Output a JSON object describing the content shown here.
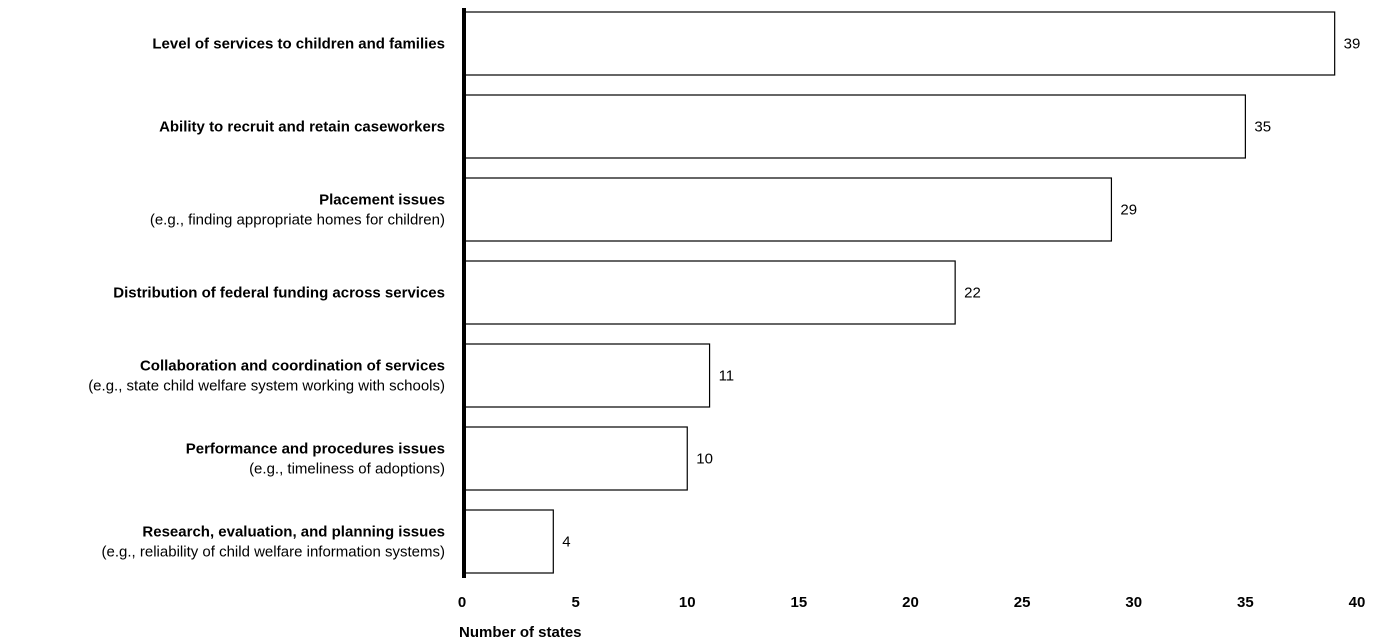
{
  "chart_data": {
    "type": "bar",
    "orientation": "horizontal",
    "categories": [
      {
        "label": "Level of services to children and families",
        "sublabel": ""
      },
      {
        "label": "Ability to recruit and retain caseworkers",
        "sublabel": ""
      },
      {
        "label": "Placement issues",
        "sublabel": "(e.g., finding appropriate homes for children)"
      },
      {
        "label": "Distribution of federal funding across services",
        "sublabel": ""
      },
      {
        "label": "Collaboration and coordination of services",
        "sublabel": "(e.g., state child welfare system working with schools)"
      },
      {
        "label": "Performance and procedures issues",
        "sublabel": "(e.g., timeliness of adoptions)"
      },
      {
        "label": "Research, evaluation, and planning issues",
        "sublabel": "(e.g., reliability of child welfare information systems)"
      }
    ],
    "values": [
      39,
      35,
      29,
      22,
      11,
      10,
      4
    ],
    "xlabel": "Number of states",
    "xlim": [
      0,
      40
    ],
    "xticks": [
      0,
      5,
      10,
      15,
      20,
      25,
      30,
      35,
      40
    ],
    "grid": false,
    "colors": {
      "bar_fill": "#ffffff",
      "bar_stroke": "#000000",
      "axis": "#000000"
    }
  }
}
